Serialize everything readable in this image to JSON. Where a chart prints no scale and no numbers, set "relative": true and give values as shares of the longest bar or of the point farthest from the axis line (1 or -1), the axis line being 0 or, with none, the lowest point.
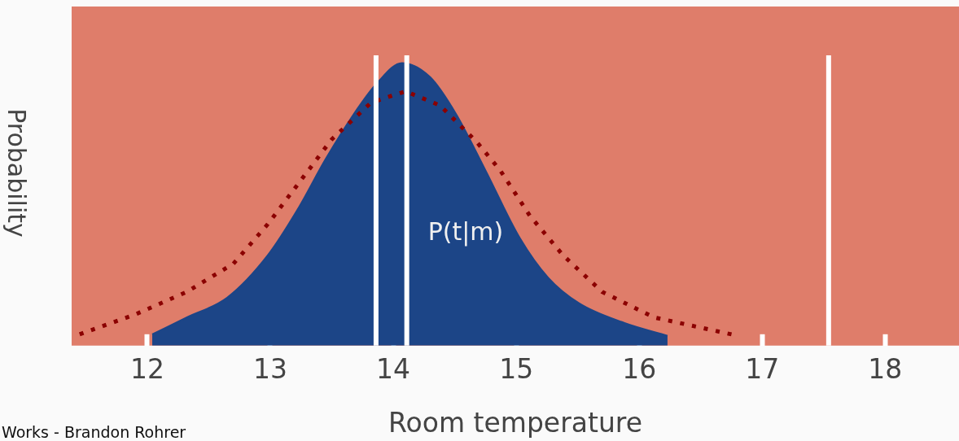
{
  "chart_data": {
    "type": "area",
    "relative": true,
    "xlabel": "Room temperature",
    "ylabel": "Probability",
    "xlim": [
      11.385,
      18.6
    ],
    "xticks": [
      12,
      13,
      14,
      15,
      16,
      17,
      18
    ],
    "grid": false,
    "legend": false,
    "series": [
      {
        "color": "#1c4587",
        "x": [
          12.04,
          12.32,
          12.65,
          12.98,
          13.22,
          13.45,
          13.68,
          13.87,
          14.07,
          14.3,
          14.51,
          14.75,
          15.03,
          15.26,
          15.51,
          15.88,
          16.23
        ],
        "values": [
          0.04,
          0.1,
          0.17,
          0.32,
          0.48,
          0.66,
          0.82,
          0.93,
          1.0,
          0.95,
          0.82,
          0.62,
          0.38,
          0.24,
          0.15,
          0.08,
          0.035
        ]
      },
      {
        "type": "line",
        "line_style": "dotted",
        "color": "#8b0000",
        "x": [
          11.45,
          11.9,
          12.32,
          12.7,
          12.98,
          13.24,
          13.5,
          13.82,
          14.1,
          14.38,
          14.68,
          14.87,
          15.11,
          15.38,
          15.7,
          16.12,
          16.75
        ],
        "values": [
          0.04,
          0.11,
          0.19,
          0.29,
          0.43,
          0.58,
          0.73,
          0.86,
          0.9,
          0.85,
          0.72,
          0.62,
          0.46,
          0.32,
          0.19,
          0.1,
          0.04
        ]
      }
    ],
    "ref_lines": [
      {
        "axis": "x",
        "value": 13.86,
        "color": "#ffffff"
      },
      {
        "axis": "x",
        "value": 14.11,
        "color": "#ffffff"
      },
      {
        "axis": "x",
        "value": 17.54,
        "color": "#ffffff"
      }
    ],
    "annotations": [
      "P(t|m)",
      "Works - Brandon Rohrer"
    ]
  }
}
